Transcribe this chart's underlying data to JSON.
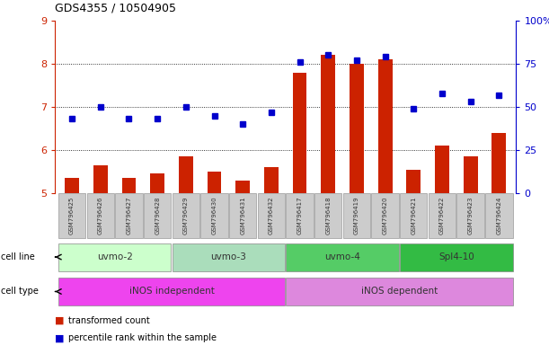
{
  "title": "GDS4355 / 10504905",
  "samples": [
    "GSM796425",
    "GSM796426",
    "GSM796427",
    "GSM796428",
    "GSM796429",
    "GSM796430",
    "GSM796431",
    "GSM796432",
    "GSM796417",
    "GSM796418",
    "GSM796419",
    "GSM796420",
    "GSM796421",
    "GSM796422",
    "GSM796423",
    "GSM796424"
  ],
  "transformed_count": [
    5.35,
    5.65,
    5.35,
    5.45,
    5.85,
    5.5,
    5.3,
    5.6,
    7.8,
    8.2,
    8.0,
    8.1,
    5.55,
    6.1,
    5.85,
    6.4
  ],
  "percentile_rank_pct": [
    43,
    50,
    43,
    43,
    50,
    45,
    40,
    47,
    76,
    80,
    77,
    79,
    49,
    58,
    53,
    57
  ],
  "bar_color": "#cc2200",
  "dot_color": "#0000cc",
  "cell_lines": [
    {
      "label": "uvmo-2",
      "start": 0,
      "end": 4,
      "color": "#ccffcc"
    },
    {
      "label": "uvmo-3",
      "start": 4,
      "end": 8,
      "color": "#aaddbb"
    },
    {
      "label": "uvmo-4",
      "start": 8,
      "end": 12,
      "color": "#55cc66"
    },
    {
      "label": "Spl4-10",
      "start": 12,
      "end": 16,
      "color": "#33bb44"
    }
  ],
  "cell_types": [
    {
      "label": "iNOS independent",
      "start": 0,
      "end": 8,
      "color": "#ee44ee"
    },
    {
      "label": "iNOS dependent",
      "start": 8,
      "end": 16,
      "color": "#dd88dd"
    }
  ],
  "ylim_left": [
    5,
    9
  ],
  "ylim_right": [
    0,
    100
  ],
  "yticks_left": [
    5,
    6,
    7,
    8,
    9
  ],
  "yticks_right": [
    0,
    25,
    50,
    75,
    100
  ]
}
